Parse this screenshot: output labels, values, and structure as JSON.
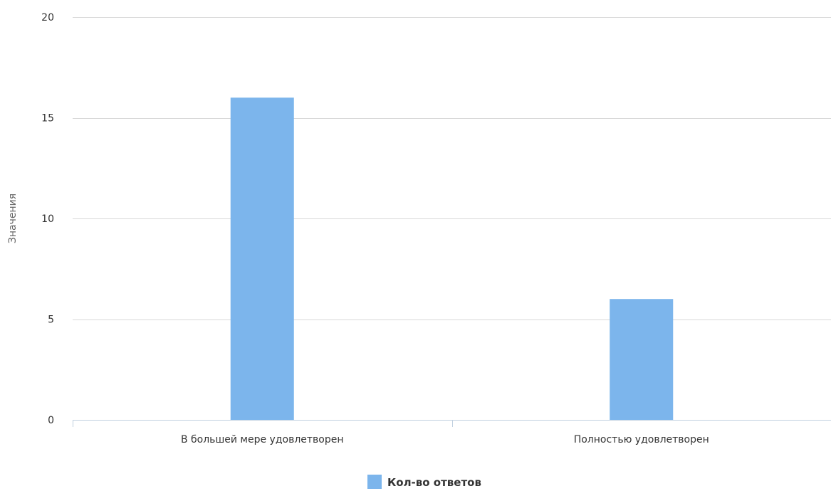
{
  "chart_data": {
    "type": "bar",
    "title": "",
    "xlabel": "",
    "ylabel": "Значения",
    "ylim": [
      0,
      20
    ],
    "yticks": [
      0,
      5,
      10,
      15,
      20
    ],
    "categories": [
      "В большей мере удовлетворен",
      "Полностью удовлетворен"
    ],
    "series": [
      {
        "name": "Кол-во ответов",
        "values": [
          16,
          6
        ],
        "color": "#7cb5ec"
      }
    ],
    "grid": true,
    "legend_position": "bottom-center"
  }
}
